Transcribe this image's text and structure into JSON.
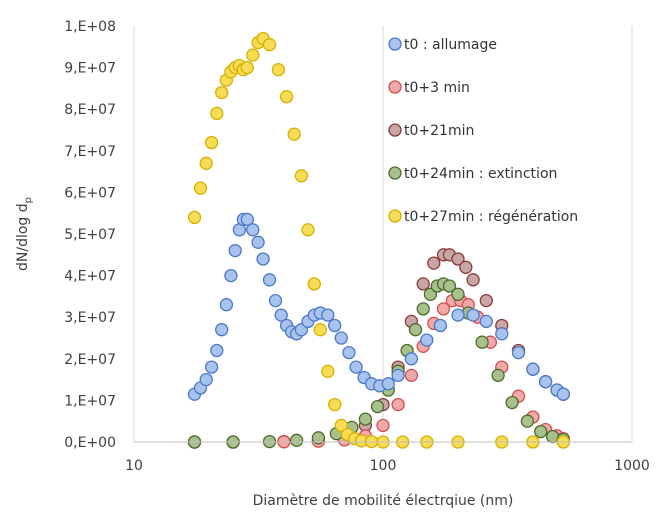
{
  "chart_data": {
    "type": "scatter",
    "title": "",
    "xlabel": "Diamètre de mobilité électrqiue (nm)",
    "ylabel_main": "dN/dlog d",
    "ylabel_sub": "p",
    "x_scale": "log",
    "xlim": [
      10,
      1000
    ],
    "ylim": [
      0,
      100000000
    ],
    "x_ticks": [
      10,
      100,
      1000
    ],
    "x_tick_labels": [
      "10",
      "100",
      "1000"
    ],
    "y_ticks": [
      0,
      10000000,
      20000000,
      30000000,
      40000000,
      50000000,
      60000000,
      70000000,
      80000000,
      90000000,
      100000000
    ],
    "y_tick_labels": [
      "0,E+00",
      "1,E+07",
      "2,E+07",
      "3,E+07",
      "4,E+07",
      "5,E+07",
      "6,E+07",
      "7,E+07",
      "8,E+07",
      "9,E+07",
      "1,E+08"
    ],
    "grid": "vertical-major",
    "legend_position": "top-right",
    "series": [
      {
        "name": "t0+21min",
        "fill": "#c9a6a6",
        "stroke": "#8b3a3a",
        "x": [
          17.5,
          25,
          40,
          55,
          70,
          85,
          100,
          115,
          130,
          145,
          160,
          175,
          185,
          200,
          215,
          230,
          260,
          300,
          350,
          400,
          450,
          500,
          530
        ],
        "y": [
          0,
          0,
          100000,
          400000,
          1500000,
          4000000,
          9000000,
          18000000,
          29000000,
          38000000,
          43000000,
          45000000,
          45000000,
          44000000,
          42000000,
          39000000,
          34000000,
          28000000,
          22000000,
          17500000,
          14500000,
          12500000,
          11500000
        ]
      },
      {
        "name": "t0+3 min",
        "fill": "#f0a8a8",
        "stroke": "#d05050",
        "x": [
          17.5,
          25,
          40,
          55,
          70,
          85,
          100,
          115,
          130,
          145,
          160,
          175,
          190,
          205,
          220,
          240,
          270,
          300,
          350,
          400,
          450,
          500,
          530
        ],
        "y": [
          0,
          0,
          50000,
          200000,
          500000,
          1500000,
          4000000,
          9000000,
          16000000,
          23000000,
          28500000,
          32000000,
          34000000,
          34000000,
          33000000,
          30000000,
          24000000,
          18000000,
          11000000,
          6000000,
          3000000,
          1500000,
          800000
        ]
      },
      {
        "name": "t0+24min : extinction",
        "fill": "#a8c08c",
        "stroke": "#4f6b2c",
        "x": [
          17.5,
          25,
          35,
          45,
          55,
          65,
          75,
          85,
          95,
          105,
          115,
          125,
          135,
          145,
          155,
          165,
          175,
          185,
          200,
          220,
          250,
          290,
          330,
          380,
          430,
          480,
          530
        ],
        "y": [
          0,
          0,
          100000,
          400000,
          1000000,
          2000000,
          3500000,
          5500000,
          8500000,
          12500000,
          17000000,
          22000000,
          27000000,
          32000000,
          35500000,
          37500000,
          38000000,
          37500000,
          35500000,
          31000000,
          24000000,
          16000000,
          9500000,
          5000000,
          2500000,
          1300000,
          600000
        ]
      },
      {
        "name": "t0 : allumage",
        "fill": "#a8c4ee",
        "stroke": "#4a78c8",
        "x": [
          17.5,
          18.5,
          19.5,
          20.5,
          21.5,
          22.5,
          23.5,
          24.5,
          25.5,
          26.5,
          27.5,
          28.5,
          30,
          31.5,
          33,
          35,
          37,
          39,
          41,
          43,
          45,
          47,
          50,
          53,
          56,
          60,
          64,
          68,
          73,
          78,
          84,
          90,
          97,
          105,
          115,
          130,
          150,
          170,
          200,
          230,
          260,
          300,
          350,
          400,
          450,
          500,
          530
        ],
        "y": [
          11500000,
          13000000,
          15000000,
          18000000,
          22000000,
          27000000,
          33000000,
          40000000,
          46000000,
          51000000,
          53500000,
          53500000,
          51000000,
          48000000,
          44000000,
          39000000,
          34000000,
          30500000,
          28000000,
          26500000,
          26000000,
          27000000,
          29000000,
          30500000,
          31000000,
          30500000,
          28000000,
          25000000,
          21500000,
          18000000,
          15500000,
          14000000,
          13500000,
          14000000,
          16000000,
          20000000,
          24500000,
          28000000,
          30500000,
          30500000,
          29000000,
          26000000,
          21500000,
          17500000,
          14500000,
          12500000,
          11500000
        ]
      },
      {
        "name": "t0+27min : régénération",
        "fill": "#f6dd55",
        "stroke": "#d6b000",
        "x": [
          17.5,
          18.5,
          19.5,
          20.5,
          21.5,
          22.5,
          23.5,
          24.5,
          25.5,
          26.5,
          27.5,
          28.5,
          30,
          31.5,
          33,
          35,
          38,
          41,
          44,
          47,
          50,
          53,
          56,
          60,
          64,
          68,
          72,
          77,
          82,
          90,
          100,
          120,
          150,
          200,
          300,
          400,
          530
        ],
        "y": [
          54000000,
          61000000,
          67000000,
          72000000,
          79000000,
          84000000,
          87000000,
          89000000,
          90000000,
          90500000,
          89500000,
          90000000,
          93000000,
          96000000,
          97000000,
          95500000,
          89500000,
          83000000,
          74000000,
          64000000,
          51000000,
          38000000,
          27000000,
          17000000,
          9000000,
          4000000,
          1800000,
          800000,
          300000,
          100000,
          0,
          0,
          0,
          0,
          0,
          0,
          0
        ]
      }
    ],
    "legend": [
      {
        "name": "t0 : allumage",
        "fill": "#a8c4ee",
        "stroke": "#4a78c8"
      },
      {
        "name": "t0+3 min",
        "fill": "#f0a8a8",
        "stroke": "#d05050"
      },
      {
        "name": "t0+21min",
        "fill": "#c9a6a6",
        "stroke": "#8b3a3a"
      },
      {
        "name": "t0+24min : extinction",
        "fill": "#a8c08c",
        "stroke": "#4f6b2c"
      },
      {
        "name": "t0+27min : régénération",
        "fill": "#f6dd55",
        "stroke": "#d6b000"
      }
    ]
  }
}
